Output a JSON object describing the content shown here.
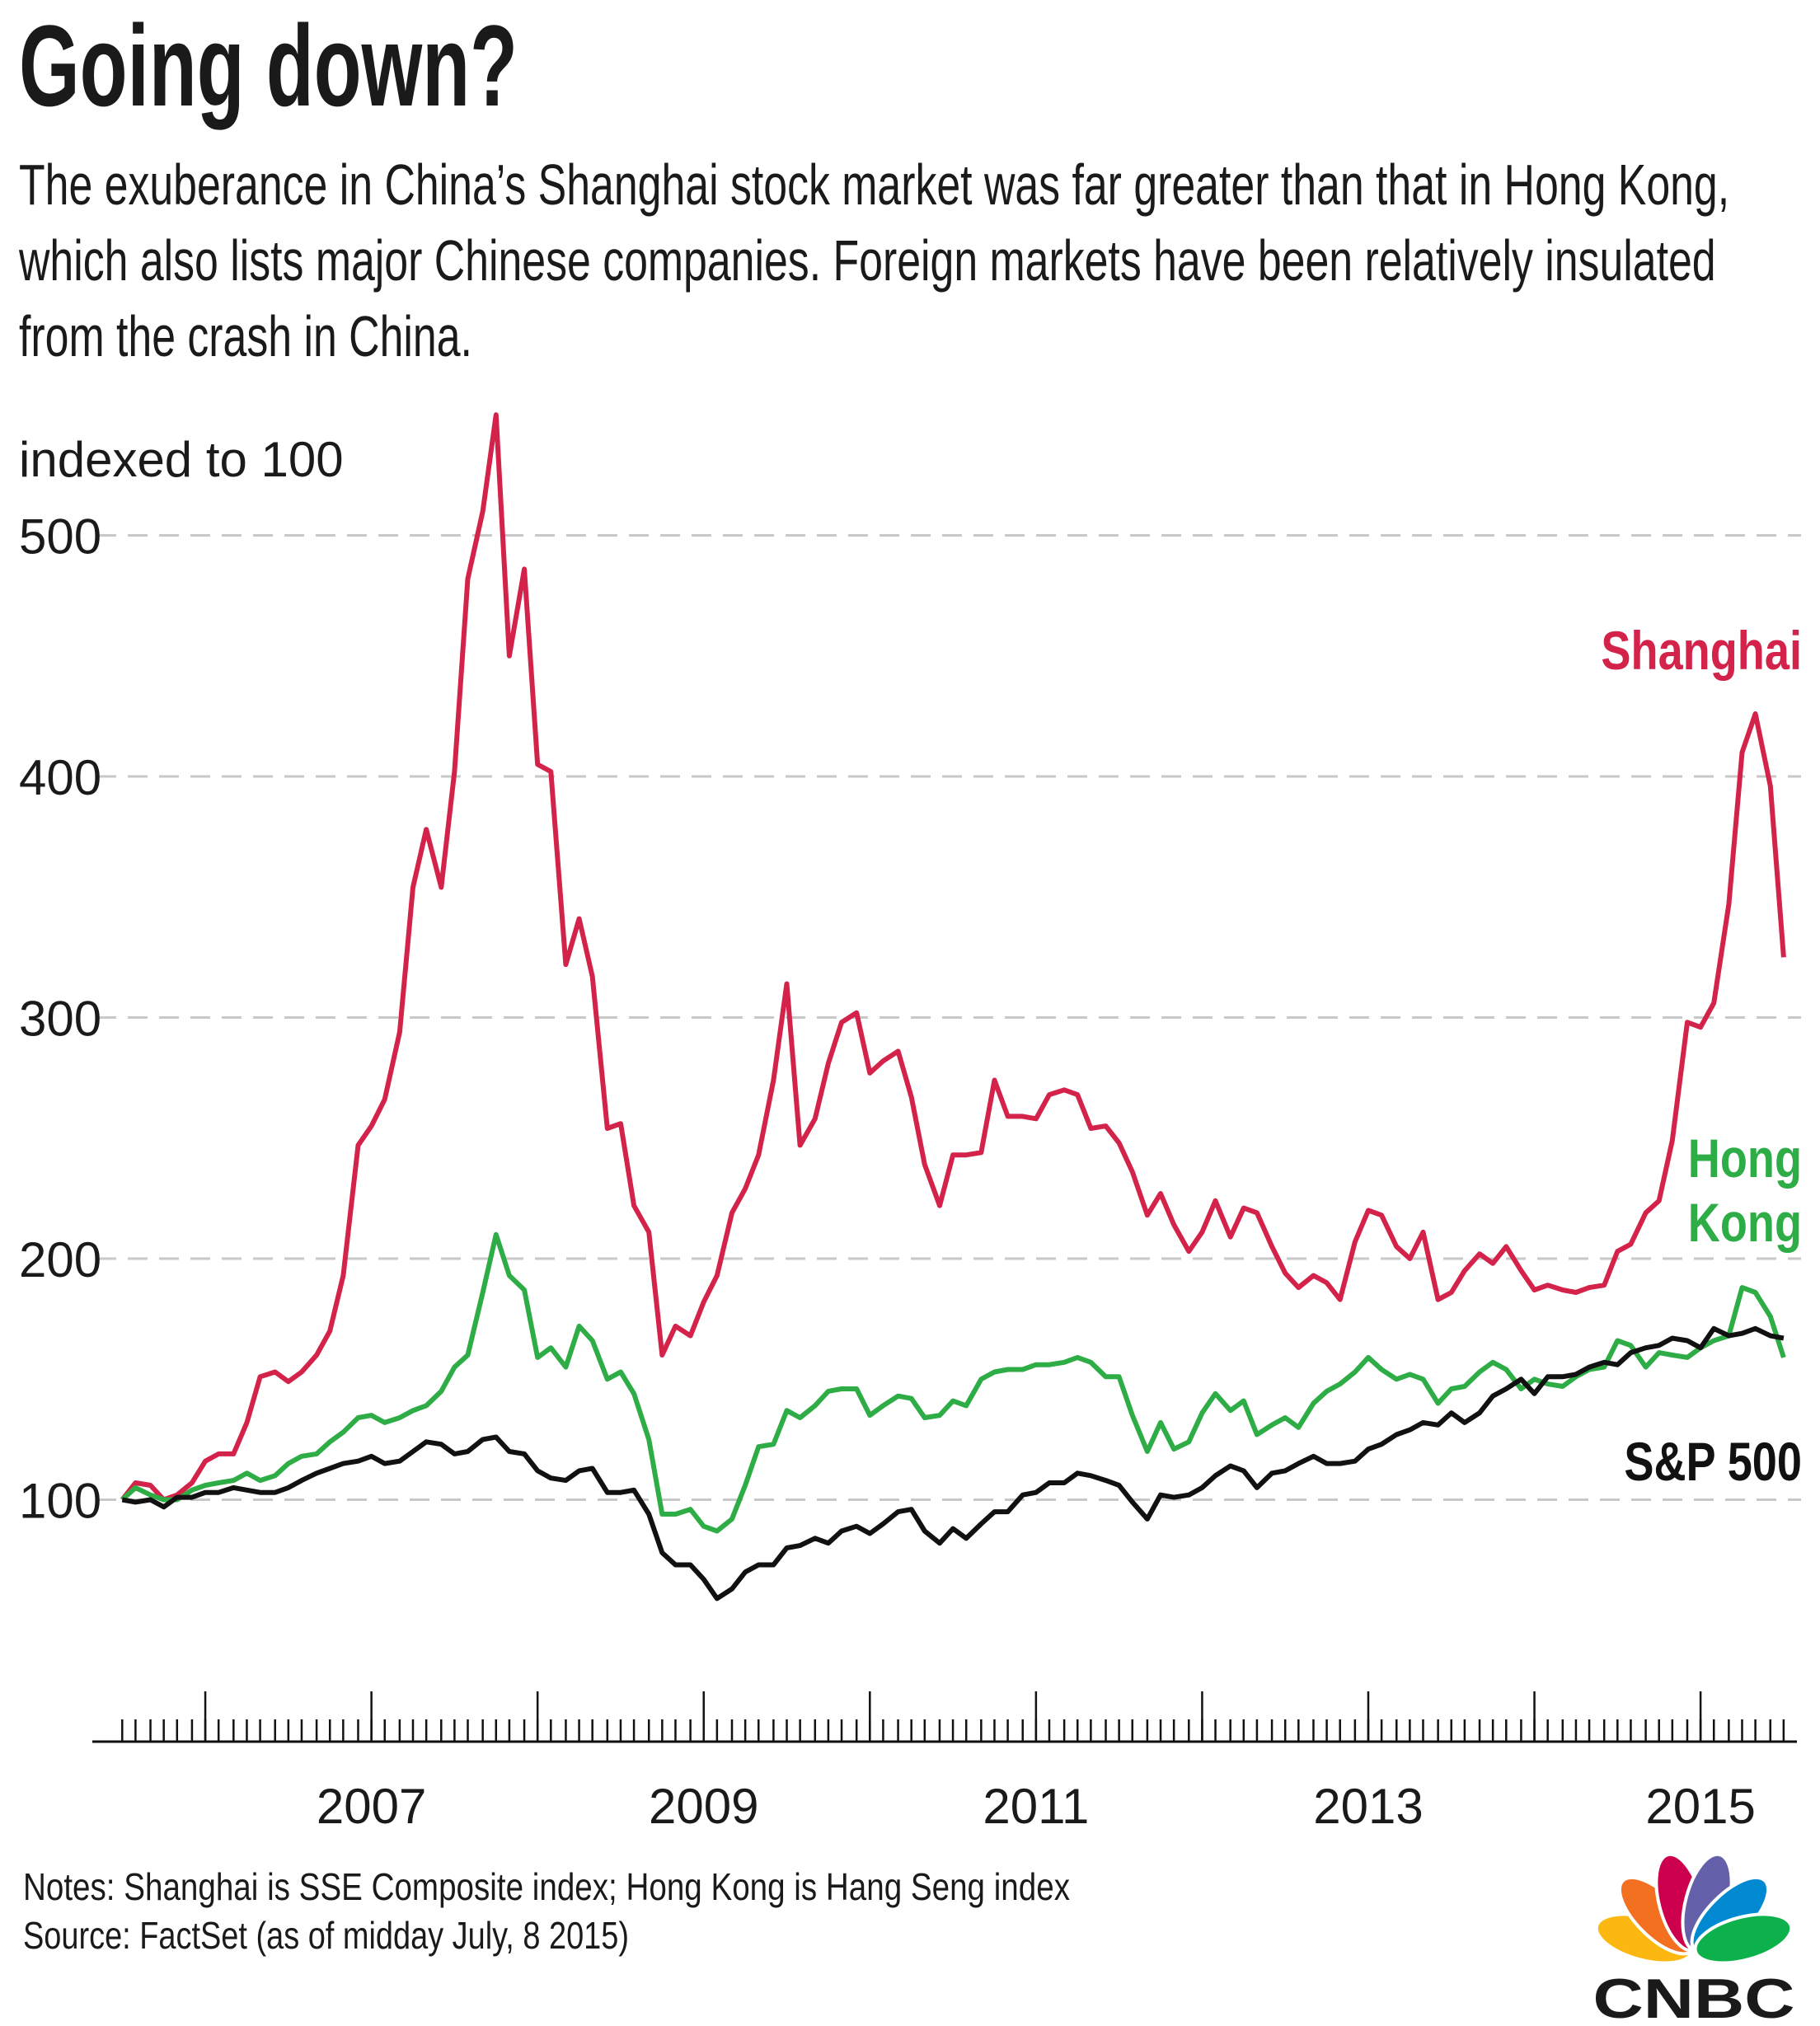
{
  "chart_data": {
    "type": "line",
    "title": "Going down?",
    "subtitle": "The exuberance in China’s Shanghai stock market was far greater than that in Hong Kong, which also lists major Chinese companies. Foreign markets have been relatively insulated from the crash in China.",
    "y_label": "indexed to 100",
    "notes": "Notes: Shanghai is SSE Composite index; Hong Kong is Hang Seng index",
    "source": "Source: FactSet (as of midday July, 8 2015)",
    "xlim": [
      2005.32,
      2015.58
    ],
    "xticks": [
      2007,
      2009,
      2011,
      2013,
      2015
    ],
    "major_xticks": [
      2006,
      2007,
      2008,
      2009,
      2010,
      2011,
      2012,
      2013,
      2014,
      2015
    ],
    "ylim": [
      0,
      600
    ],
    "yticks": [
      100,
      200,
      300,
      400,
      500
    ],
    "grid": true,
    "x": [
      2005.5,
      2005.58,
      2005.67,
      2005.75,
      2005.83,
      2005.92,
      2006.0,
      2006.08,
      2006.17,
      2006.25,
      2006.33,
      2006.42,
      2006.5,
      2006.58,
      2006.67,
      2006.75,
      2006.83,
      2006.92,
      2007.0,
      2007.08,
      2007.17,
      2007.25,
      2007.33,
      2007.42,
      2007.5,
      2007.58,
      2007.67,
      2007.75,
      2007.83,
      2007.92,
      2008.0,
      2008.08,
      2008.17,
      2008.25,
      2008.33,
      2008.42,
      2008.5,
      2008.58,
      2008.67,
      2008.75,
      2008.83,
      2008.92,
      2009.0,
      2009.08,
      2009.17,
      2009.25,
      2009.33,
      2009.42,
      2009.5,
      2009.58,
      2009.67,
      2009.75,
      2009.83,
      2009.92,
      2010.0,
      2010.08,
      2010.17,
      2010.25,
      2010.33,
      2010.42,
      2010.5,
      2010.58,
      2010.67,
      2010.75,
      2010.83,
      2010.92,
      2011.0,
      2011.08,
      2011.17,
      2011.25,
      2011.33,
      2011.42,
      2011.5,
      2011.58,
      2011.67,
      2011.75,
      2011.83,
      2011.92,
      2012.0,
      2012.08,
      2012.17,
      2012.25,
      2012.33,
      2012.42,
      2012.5,
      2012.58,
      2012.67,
      2012.75,
      2012.83,
      2012.92,
      2013.0,
      2013.08,
      2013.17,
      2013.25,
      2013.33,
      2013.42,
      2013.5,
      2013.58,
      2013.67,
      2013.75,
      2013.83,
      2013.92,
      2014.0,
      2014.08,
      2014.17,
      2014.25,
      2014.33,
      2014.42,
      2014.5,
      2014.58,
      2014.67,
      2014.75,
      2014.83,
      2014.92,
      2015.0,
      2015.08,
      2015.17,
      2015.25,
      2015.33,
      2015.42,
      2015.5
    ],
    "series": [
      {
        "name": "Shanghai",
        "color": "#d4234a",
        "values": [
          100,
          107,
          106,
          100,
          102,
          107,
          116,
          119,
          119,
          132,
          151,
          153,
          149,
          153,
          160,
          170,
          193,
          247,
          255,
          266,
          294,
          354,
          378,
          354,
          402,
          482,
          510,
          550,
          450,
          486,
          405,
          402,
          322,
          341,
          317,
          254,
          256,
          222,
          211,
          160,
          172,
          168,
          182,
          193,
          219,
          229,
          243,
          274,
          314,
          247,
          258,
          281,
          298,
          302,
          277,
          282,
          286,
          267,
          239,
          222,
          243,
          243,
          244,
          274,
          259,
          259,
          258,
          268,
          270,
          268,
          254,
          255,
          248,
          236,
          218,
          227,
          214,
          203,
          211,
          224,
          209,
          221,
          219,
          205,
          194,
          188,
          193,
          190,
          183,
          207,
          220,
          218,
          205,
          200,
          211,
          183,
          186,
          195,
          202,
          198,
          205,
          195,
          187,
          189,
          187,
          186,
          188,
          189,
          203,
          206,
          219,
          224,
          249,
          298,
          296,
          306,
          347,
          410,
          426,
          396,
          325
        ]
      },
      {
        "name": "Hong Kong",
        "color": "#2eac46",
        "values": [
          100,
          105,
          102,
          100,
          100,
          104,
          106,
          107,
          108,
          111,
          108,
          110,
          115,
          118,
          119,
          124,
          128,
          134,
          135,
          132,
          134,
          137,
          139,
          145,
          155,
          160,
          186,
          210,
          193,
          187,
          159,
          163,
          155,
          172,
          166,
          150,
          153,
          144,
          125,
          94,
          94,
          96,
          89,
          87,
          92,
          106,
          122,
          123,
          137,
          134,
          139,
          145,
          146,
          146,
          135,
          139,
          143,
          142,
          134,
          135,
          141,
          139,
          150,
          153,
          154,
          154,
          156,
          156,
          157,
          159,
          157,
          151,
          151,
          135,
          120,
          132,
          121,
          124,
          136,
          144,
          137,
          141,
          127,
          131,
          134,
          130,
          140,
          145,
          148,
          153,
          159,
          154,
          150,
          152,
          150,
          140,
          146,
          147,
          153,
          157,
          154,
          146,
          150,
          148,
          147,
          151,
          154,
          155,
          166,
          164,
          155,
          161,
          160,
          159,
          163,
          166,
          168,
          188,
          186,
          176,
          159
        ]
      },
      {
        "name": "S&P 500",
        "color": "#111111",
        "values": [
          100,
          99,
          100,
          97,
          101,
          101,
          103,
          103,
          105,
          104,
          103,
          103,
          105,
          108,
          111,
          113,
          115,
          116,
          118,
          115,
          116,
          120,
          124,
          123,
          119,
          120,
          125,
          126,
          120,
          119,
          112,
          109,
          108,
          112,
          113,
          103,
          103,
          104,
          94,
          78,
          73,
          73,
          67,
          59,
          63,
          70,
          73,
          73,
          80,
          81,
          84,
          82,
          87,
          89,
          86,
          90,
          95,
          96,
          87,
          82,
          88,
          84,
          90,
          95,
          95,
          102,
          103,
          107,
          107,
          111,
          110,
          108,
          106,
          99,
          92,
          102,
          101,
          102,
          105,
          110,
          114,
          112,
          105,
          111,
          112,
          115,
          118,
          115,
          115,
          116,
          121,
          123,
          127,
          129,
          132,
          131,
          136,
          132,
          136,
          143,
          146,
          150,
          144,
          151,
          151,
          152,
          155,
          157,
          156,
          161,
          163,
          164,
          167,
          166,
          163,
          171,
          168,
          169,
          171,
          168,
          167
        ]
      }
    ]
  },
  "logo": "CNBC"
}
